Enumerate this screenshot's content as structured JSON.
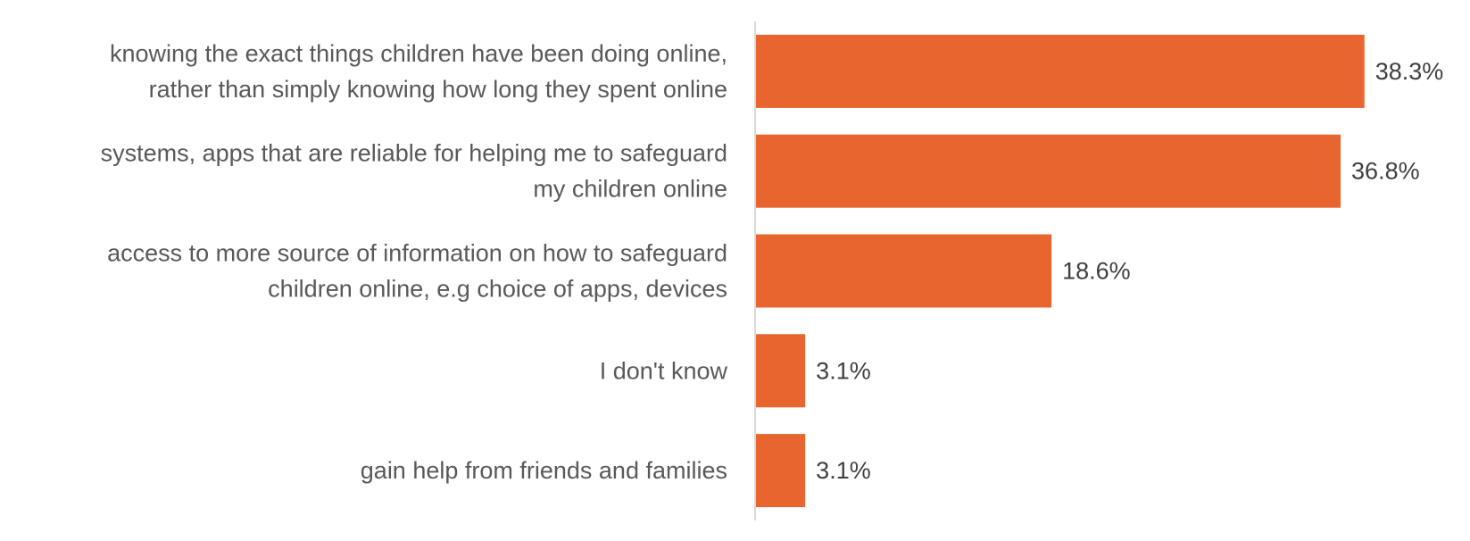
{
  "chart_data": {
    "type": "bar",
    "orientation": "horizontal",
    "categories": [
      [
        "knowing the exact things children have been doing online,",
        "rather than simply knowing how long they spent online"
      ],
      [
        "systems, apps that are reliable for helping me to safeguard",
        "my children online"
      ],
      [
        "access to more source of information on how to safeguard",
        "children online, e.g choice of apps, devices"
      ],
      [
        "I don't know"
      ],
      [
        "gain help from friends and families"
      ]
    ],
    "values": [
      38.3,
      36.8,
      18.6,
      3.1,
      3.1
    ],
    "value_labels": [
      "38.3%",
      "36.8%",
      "18.6%",
      "3.1%",
      "3.1%"
    ],
    "unit": "%",
    "xlim": [
      0,
      45
    ],
    "grid": false,
    "legend": "none",
    "bar_color": "#E8652F",
    "axis_color": "#D9D9D9",
    "title": "",
    "xlabel": "",
    "ylabel": ""
  }
}
